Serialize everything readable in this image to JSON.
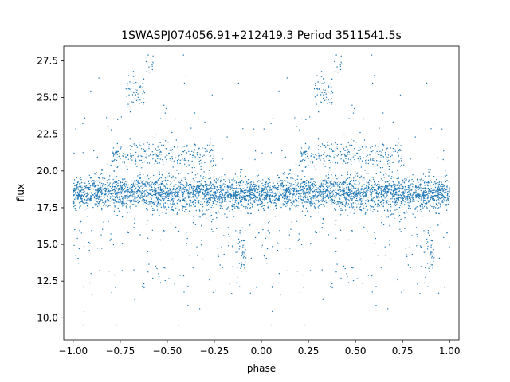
{
  "chart_data": {
    "type": "scatter",
    "title": "1SWASPJ074056.91+212419.3 Period 3511541.5s",
    "xlabel": "phase",
    "ylabel": "flux",
    "xlim": [
      -1.05,
      1.05
    ],
    "ylim": [
      8.5,
      28.5
    ],
    "x_ticks": [
      -1.0,
      -0.75,
      -0.5,
      -0.25,
      0.0,
      0.25,
      0.5,
      0.75,
      1.0
    ],
    "x_tick_labels": [
      "−1.00",
      "−0.75",
      "−0.50",
      "−0.25",
      "0.00",
      "0.25",
      "0.50",
      "0.75",
      "1.00"
    ],
    "y_ticks": [
      10.0,
      12.5,
      15.0,
      17.5,
      20.0,
      22.5,
      25.0,
      27.5
    ],
    "y_tick_labels": [
      "10.0",
      "12.5",
      "15.0",
      "17.5",
      "20.0",
      "22.5",
      "25.0",
      "27.5"
    ],
    "grid": false,
    "legend": "none",
    "point_color": "#1f77b4",
    "series": [
      {
        "values_description_free": true,
        "phase_period": 1.0,
        "components": [
          {
            "level": 18.5,
            "spread": 0.55,
            "x_range": [
              0.0,
              1.0
            ],
            "weight": 0.72
          },
          {
            "level": 21.0,
            "spread": 0.5,
            "x_range": [
              0.2,
              0.75
            ],
            "weight": 0.1
          },
          {
            "level": 25.2,
            "spread": 0.5,
            "x_range": [
              0.28,
              0.38
            ],
            "weight": 0.02
          },
          {
            "level": 27.3,
            "spread": 0.4,
            "x_range": [
              0.38,
              0.43
            ],
            "weight": 0.005
          },
          {
            "level": 14.5,
            "spread": 0.6,
            "x_range": [
              0.87,
              0.92
            ],
            "weight": 0.015
          },
          {
            "level": 15.5,
            "spread": 2.5,
            "x_range": [
              0.0,
              1.0
            ],
            "weight": 0.05
          },
          {
            "level": 19.0,
            "spread": 4.5,
            "x_range": [
              0.0,
              1.0
            ],
            "weight": 0.06
          }
        ]
      }
    ]
  }
}
